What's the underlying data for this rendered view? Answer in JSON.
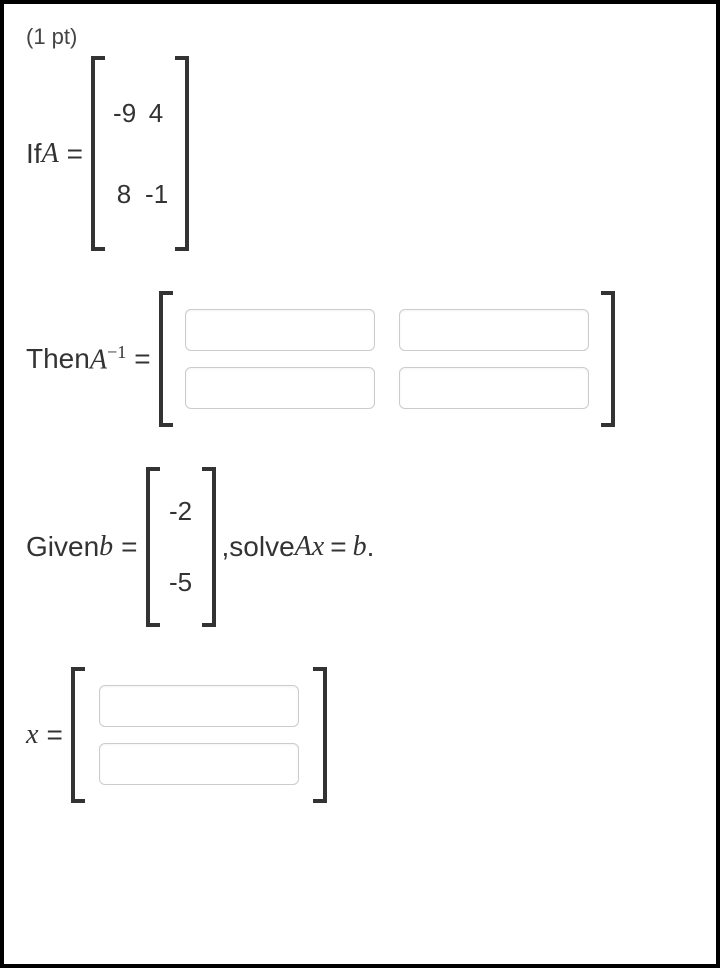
{
  "points_label": "(1 pt)",
  "lineA": {
    "prefix": "If ",
    "var": "A",
    "eq": " = ",
    "matrix": {
      "rows": [
        [
          "-9",
          "4"
        ],
        [
          "8",
          "-1"
        ]
      ]
    }
  },
  "lineAinv": {
    "prefix": "Then ",
    "var": "A",
    "sup": "−1",
    "eq": " = "
  },
  "lineB": {
    "prefix": "Given ",
    "var": "b",
    "eq": " = ",
    "matrix": {
      "rows": [
        [
          "-2"
        ],
        [
          "-5"
        ]
      ]
    },
    "after_comma": ", ",
    "solve_word": "solve ",
    "expr_A": "A",
    "expr_x": "x",
    "expr_eq": " = ",
    "expr_b": "b",
    "period": "."
  },
  "lineX": {
    "var": "x",
    "eq": " = "
  }
}
